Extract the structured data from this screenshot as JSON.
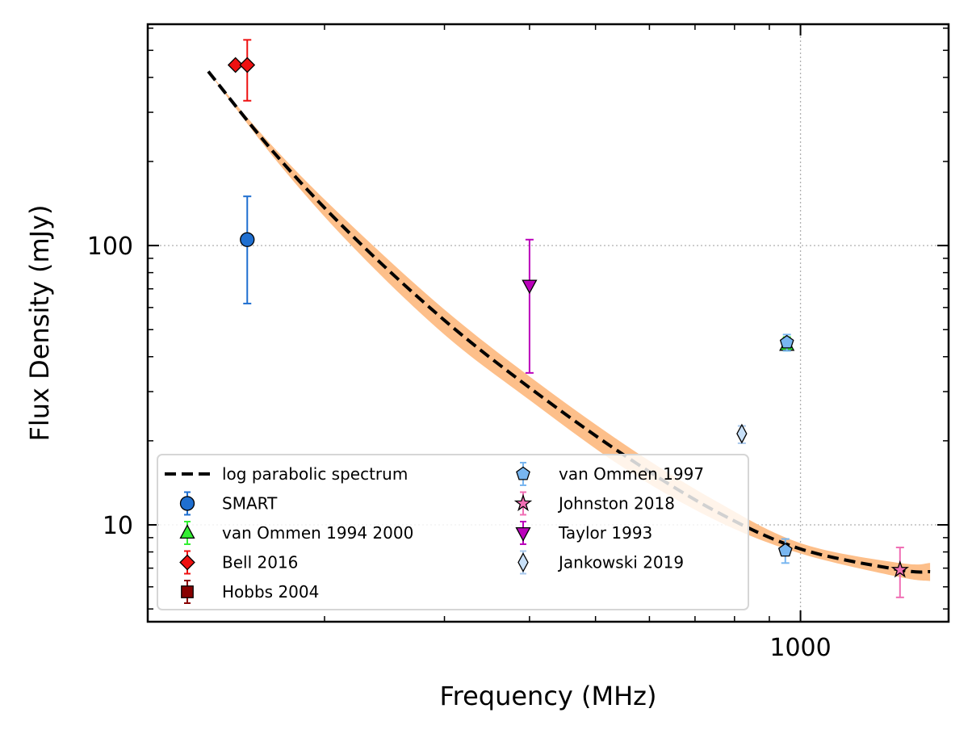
{
  "chart_data": {
    "type": "scatter",
    "xlabel": "Frequency (MHz)",
    "ylabel": "Flux Density (mJy)",
    "xscale": "log",
    "yscale": "log",
    "xlim": [
      110,
      1650
    ],
    "ylim": [
      4.5,
      620
    ],
    "x_ticks": [
      {
        "value": 1000,
        "label": "1000"
      }
    ],
    "y_ticks": [
      {
        "value": 10,
        "label": "10"
      },
      {
        "value": 100,
        "label": "100"
      }
    ],
    "grid": true,
    "legend_placement": "lower-left",
    "legend_columns": 2,
    "fit": {
      "name": "log parabolic spectrum",
      "color": "#000000",
      "band_color": "#fdbf8a",
      "x": [
        135,
        170,
        220,
        300,
        400,
        550,
        750,
        1000,
        1400,
        1550
      ],
      "y": [
        420,
        210,
        108,
        54,
        31,
        17.8,
        11.2,
        8.2,
        6.9,
        6.8
      ],
      "band_low": [
        420,
        201,
        99,
        48,
        28,
        16.0,
        10.4,
        7.9,
        6.5,
        6.3
      ],
      "band_high": [
        420,
        219,
        117,
        59,
        34,
        19.5,
        12.2,
        8.6,
        7.3,
        7.3
      ]
    },
    "series": [
      {
        "name": "SMART",
        "marker": "circle",
        "color": "#1f6fd0",
        "ecolor": "#1f6fd0",
        "points": [
          {
            "x": 154,
            "y": 105,
            "yerr_low": 62,
            "yerr_high": 150
          }
        ]
      },
      {
        "name": "van Ommen 1994 2000",
        "marker": "triangle-up",
        "color": "#33ee33",
        "ecolor": "#33ee33",
        "points": [
          {
            "x": 955,
            "y": 44,
            "yerr_low": 42,
            "yerr_high": 47
          }
        ]
      },
      {
        "name": "Bell 2016",
        "marker": "diamond",
        "color": "#ee1111",
        "ecolor": "#ee1111",
        "points": [
          {
            "x": 148,
            "y": 443,
            "yerr_low": null,
            "yerr_high": null
          },
          {
            "x": 154,
            "y": 443,
            "yerr_low": 330,
            "yerr_high": 545
          }
        ]
      },
      {
        "name": "Hobbs 2004",
        "marker": "square",
        "color": "#880000",
        "ecolor": "#880000",
        "points": []
      },
      {
        "name": "van Ommen 1997",
        "marker": "pentagon",
        "color": "#78b6f0",
        "ecolor": "#78b6f0",
        "points": [
          {
            "x": 955,
            "y": 45,
            "yerr_low": 42,
            "yerr_high": 48
          },
          {
            "x": 950,
            "y": 8.1,
            "yerr_low": 7.3,
            "yerr_high": 8.9
          }
        ]
      },
      {
        "name": "Johnston 2018",
        "marker": "star",
        "color": "#f06eb4",
        "ecolor": "#f06eb4",
        "points": [
          {
            "x": 1400,
            "y": 6.9,
            "yerr_low": 5.5,
            "yerr_high": 8.3
          }
        ]
      },
      {
        "name": "Taylor 1993",
        "marker": "triangle-down",
        "color": "#bb00bb",
        "ecolor": "#bb00bb",
        "points": [
          {
            "x": 400,
            "y": 72,
            "yerr_low": 35,
            "yerr_high": 105
          }
        ]
      },
      {
        "name": "Jankowski 2019",
        "marker": "thin-diamond",
        "color": "#c8e0f8",
        "ecolor": "#a8c8ec",
        "points": [
          {
            "x": 820,
            "y": 21.2,
            "yerr_low": 19.6,
            "yerr_high": 22.6
          }
        ]
      }
    ]
  }
}
